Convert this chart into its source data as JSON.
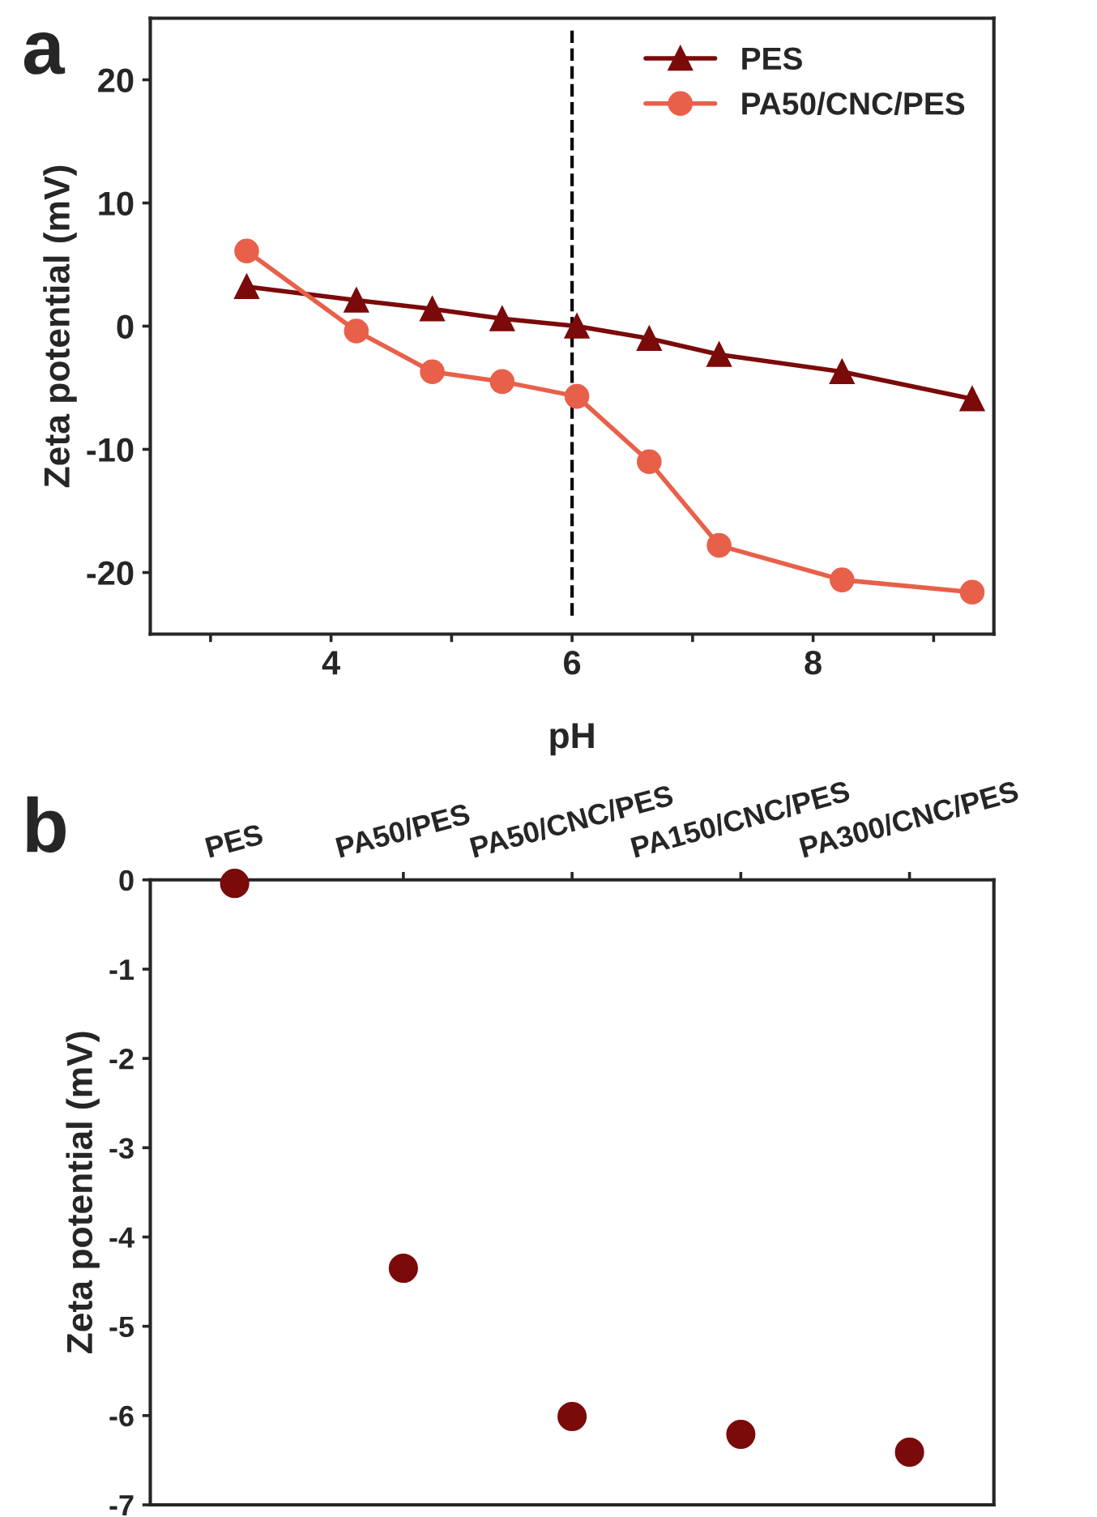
{
  "chart_data": [
    {
      "type": "line",
      "title": "a",
      "xlabel": "pH",
      "ylabel": "Zeta potential (mV)",
      "xlim": [
        2.5,
        9.5
      ],
      "xticks": [
        {
          "value": 3,
          "label": null
        },
        4,
        {
          "value": 5,
          "label": null
        },
        6,
        {
          "value": 7,
          "label": null
        },
        8,
        {
          "value": 9,
          "label": null
        }
      ],
      "ylim": [
        -25,
        25
      ],
      "yticks": [
        -20,
        -10,
        0,
        10,
        20
      ],
      "grid": false,
      "legend": "top right",
      "ref_lines": [
        {
          "axis": "x",
          "value": 6,
          "color": "#000000",
          "line_style": "dashed"
        }
      ],
      "series": [
        {
          "name": "PES",
          "color": "#7b0a0a",
          "marker": "triangle",
          "x": [
            3.3,
            4.21,
            4.84,
            5.42,
            6.04,
            6.64,
            7.22,
            8.24,
            9.32
          ],
          "values": [
            3.2,
            2.1,
            1.4,
            0.6,
            0,
            -1.0,
            -2.3,
            -3.7,
            -5.9
          ]
        },
        {
          "name": "PA50/CNC/PES",
          "color": "#e8604a",
          "marker": "circle",
          "x": [
            3.3,
            4.21,
            4.84,
            5.42,
            6.04,
            6.64,
            7.22,
            8.24,
            9.32
          ],
          "values": [
            6.1,
            -0.4,
            -3.7,
            -4.5,
            -5.7,
            -11.0,
            -17.8,
            -20.6,
            -21.6
          ]
        }
      ]
    },
    {
      "type": "scatter",
      "title": "b",
      "ylabel": "Zeta potential (mV)",
      "categories": [
        "PES",
        "PA50/PES",
        "PA50/CNC/PES",
        "PA150/CNC/PES",
        "PA300/CNC/PES"
      ],
      "ylim": [
        -7,
        0
      ],
      "yticks": [
        -7,
        -6,
        -5,
        -4,
        -3,
        -2,
        -1,
        0
      ],
      "grid": false,
      "marker": "circle",
      "series": [
        {
          "color": "#7b0a0a",
          "values": [
            -0.04,
            -4.35,
            -6.01,
            -6.21,
            -6.41
          ]
        }
      ]
    }
  ]
}
